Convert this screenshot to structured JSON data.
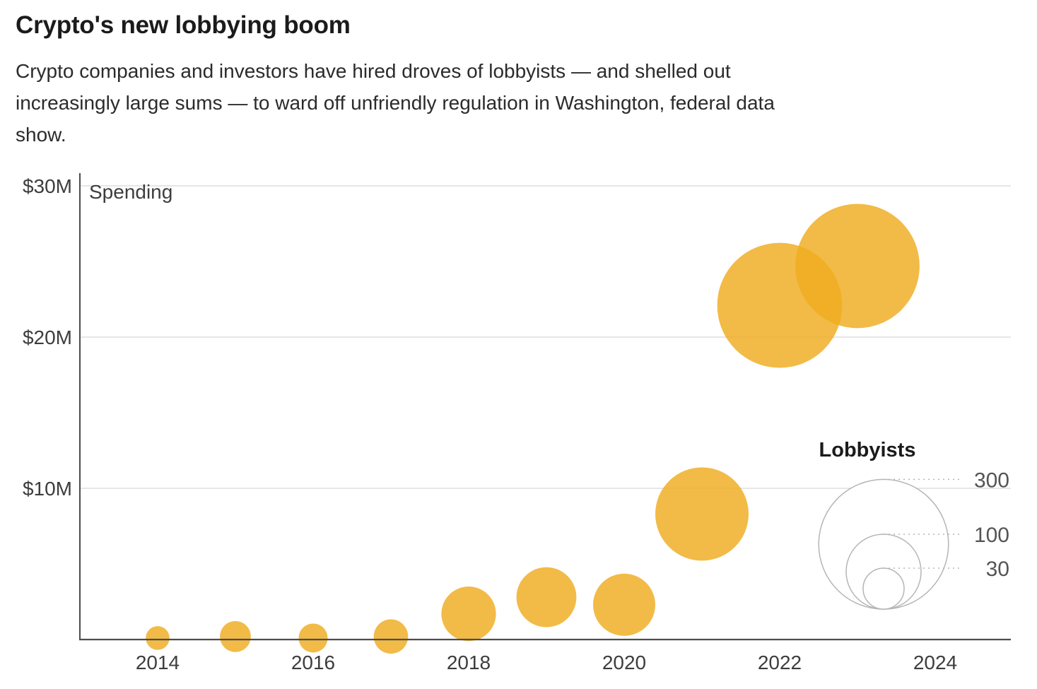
{
  "header": {
    "title": "Crypto's new lobbying boom",
    "subtitle_lines": [
      "Crypto companies and investors have hired droves of lobbyists — and shelled out",
      "increasingly large sums — to ward off unfriendly regulation in Washington, federal data",
      "show."
    ]
  },
  "chart_data": {
    "type": "scatter",
    "subtype": "bubble",
    "title": "Crypto's new lobbying boom",
    "y_axis_label": "Spending",
    "y_unit": "million USD",
    "ylim": [
      0,
      30
    ],
    "xlim": [
      2013,
      2025
    ],
    "grid": "horizontal",
    "y_ticks": [
      {
        "value": 30,
        "label": "$30M"
      },
      {
        "value": 20,
        "label": "$20M"
      },
      {
        "value": 10,
        "label": "$10M"
      }
    ],
    "x_ticks": [
      {
        "value": 2014,
        "label": "2014"
      },
      {
        "value": 2016,
        "label": "2016"
      },
      {
        "value": 2018,
        "label": "2018"
      },
      {
        "value": 2020,
        "label": "2020"
      },
      {
        "value": 2022,
        "label": "2022"
      },
      {
        "value": 2024,
        "label": "2024"
      }
    ],
    "points": [
      {
        "year": 2014,
        "spending_musd": 0.1,
        "lobbyists": 10
      },
      {
        "year": 2015,
        "spending_musd": 0.2,
        "lobbyists": 17
      },
      {
        "year": 2016,
        "spending_musd": 0.1,
        "lobbyists": 15
      },
      {
        "year": 2017,
        "spending_musd": 0.2,
        "lobbyists": 21
      },
      {
        "year": 2018,
        "spending_musd": 1.7,
        "lobbyists": 53
      },
      {
        "year": 2019,
        "spending_musd": 2.8,
        "lobbyists": 64
      },
      {
        "year": 2020,
        "spending_musd": 2.3,
        "lobbyists": 69
      },
      {
        "year": 2021,
        "spending_musd": 8.3,
        "lobbyists": 155
      },
      {
        "year": 2022,
        "spending_musd": 22.1,
        "lobbyists": 278
      },
      {
        "year": 2023,
        "spending_musd": 24.7,
        "lobbyists": 275
      }
    ],
    "legend": {
      "title": "Lobbyists",
      "sizes": [
        300,
        100,
        30
      ],
      "position": "right-middle"
    },
    "colors": {
      "bubble": "#efac1e",
      "bubble_opacity": 0.82,
      "axis": "#4d4d4d",
      "grid": "#dddddd",
      "tick_text": "#3d3d3d",
      "legend_stroke": "#b5b5b5",
      "legend_text": "#555555",
      "title_text": "#1b1b1b"
    }
  }
}
